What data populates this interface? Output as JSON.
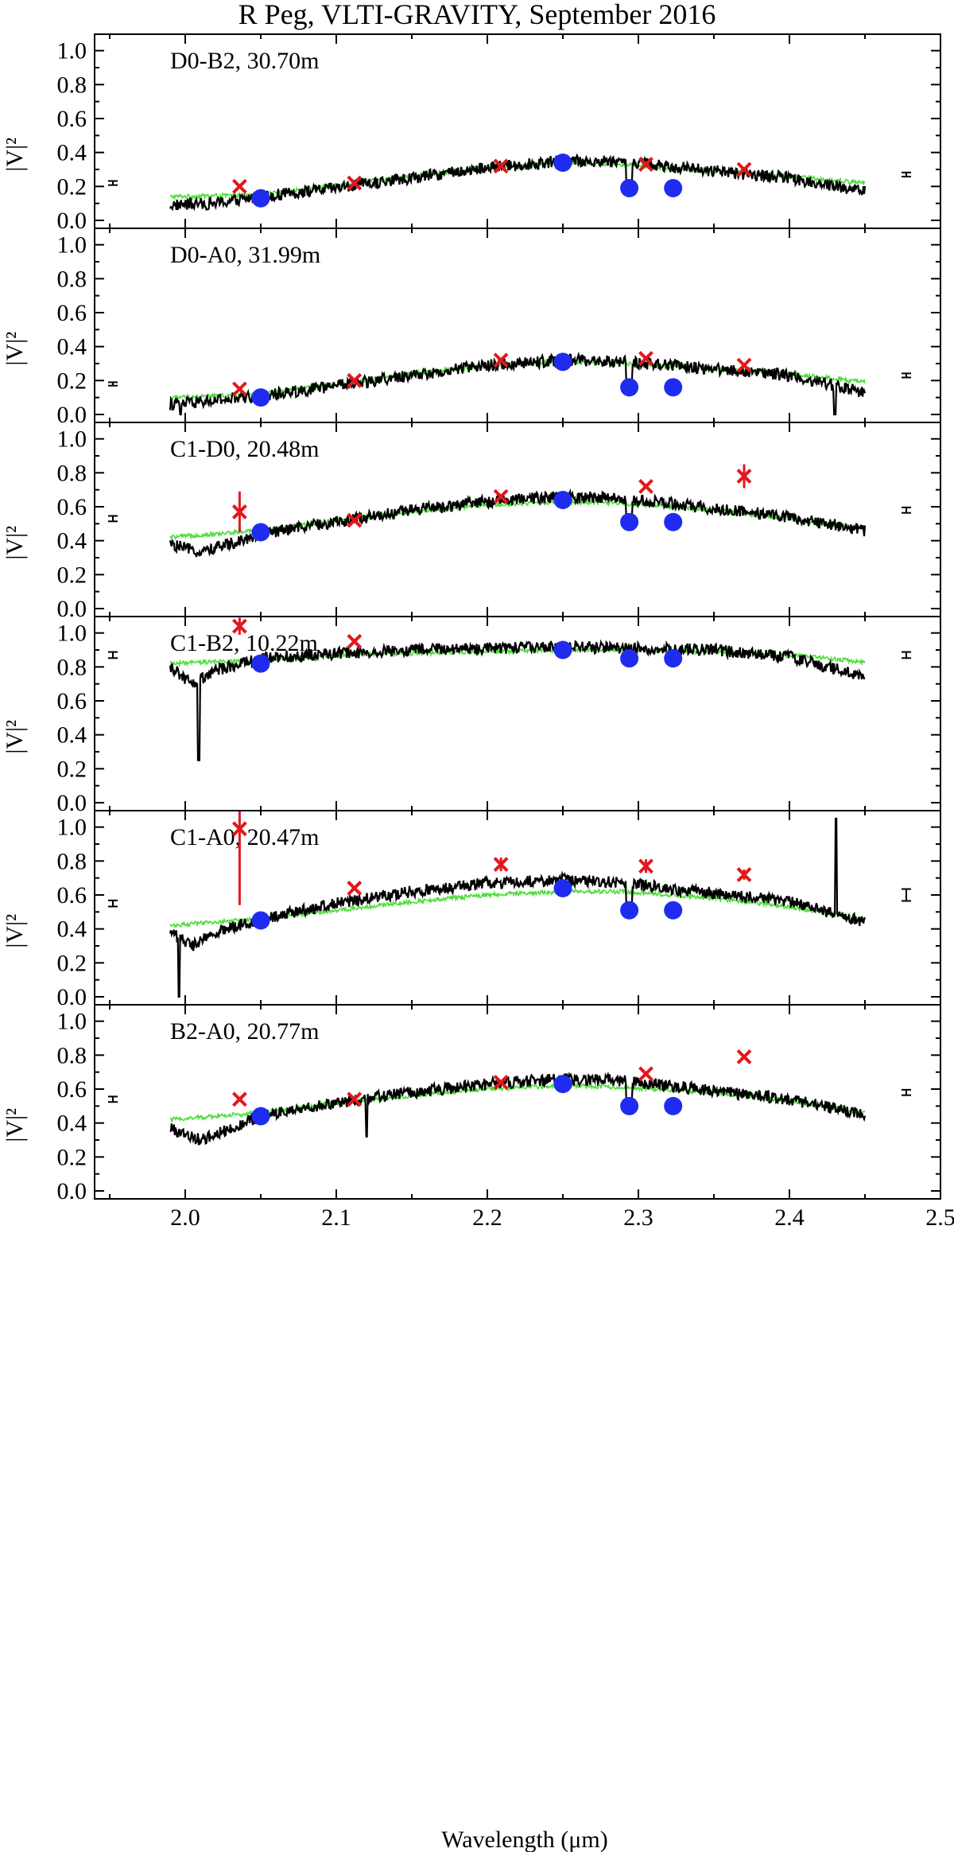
{
  "chart_data": {
    "type": "line",
    "title": "R Peg, VLTI-GRAVITY, September 2016",
    "xlabel": "Wavelength (μm)",
    "ylabel": "|V|²",
    "xlim": [
      1.94,
      2.5
    ],
    "ylim": [
      0.0,
      1.05
    ],
    "x_ticks": [
      "2.0",
      "2.1",
      "2.2",
      "2.3",
      "2.4",
      "2.5"
    ],
    "y_ticks": [
      "0.0",
      "0.2",
      "0.4",
      "0.6",
      "0.8",
      "1.0"
    ],
    "series_names": [
      "GRAVITY spectrum (black)",
      "model (green)",
      "model filter-averaged (red crosses)",
      "narrow-band averages (blue circles)"
    ],
    "colors": {
      "observed": "#000000",
      "model": "#4ddc3a",
      "crosses": "#e3171d",
      "dots": "#1f2cf0"
    },
    "panels": [
      {
        "label": "D0-B2, 30.70m",
        "baseline": "D0-B2",
        "length": "30.70m",
        "crosses": [
          {
            "x": 2.036,
            "y": 0.2
          },
          {
            "x": 2.112,
            "y": 0.22
          },
          {
            "x": 2.209,
            "y": 0.32
          },
          {
            "x": 2.305,
            "y": 0.33
          },
          {
            "x": 2.37,
            "y": 0.3
          }
        ],
        "dots": [
          {
            "x": 2.05,
            "y": 0.13
          },
          {
            "x": 2.25,
            "y": 0.34
          },
          {
            "x": 2.294,
            "y": 0.19
          },
          {
            "x": 2.323,
            "y": 0.19
          }
        ],
        "err_left": {
          "y": 0.22,
          "h": 0.012
        },
        "err_right": {
          "y": 0.27,
          "h": 0.012
        },
        "model_curve": [
          [
            1.99,
            0.14
          ],
          [
            2.05,
            0.15
          ],
          [
            2.1,
            0.21
          ],
          [
            2.15,
            0.26
          ],
          [
            2.2,
            0.31
          ],
          [
            2.25,
            0.34
          ],
          [
            2.29,
            0.33
          ],
          [
            2.35,
            0.29
          ],
          [
            2.4,
            0.26
          ],
          [
            2.45,
            0.22
          ]
        ],
        "obs_curve": [
          [
            1.99,
            0.09
          ],
          [
            2.02,
            0.1
          ],
          [
            2.05,
            0.14
          ],
          [
            2.1,
            0.19
          ],
          [
            2.15,
            0.25
          ],
          [
            2.2,
            0.31
          ],
          [
            2.25,
            0.35
          ],
          [
            2.29,
            0.35
          ],
          [
            2.35,
            0.29
          ],
          [
            2.4,
            0.25
          ],
          [
            2.45,
            0.17
          ]
        ],
        "dips": [
          {
            "x": 2.292,
            "y": 0.2
          }
        ],
        "spikes": []
      },
      {
        "label": "D0-A0, 31.99m",
        "baseline": "D0-A0",
        "length": "31.99m",
        "crosses": [
          {
            "x": 2.036,
            "y": 0.15
          },
          {
            "x": 2.112,
            "y": 0.2
          },
          {
            "x": 2.209,
            "y": 0.32
          },
          {
            "x": 2.305,
            "y": 0.33
          },
          {
            "x": 2.37,
            "y": 0.29
          }
        ],
        "dots": [
          {
            "x": 2.05,
            "y": 0.1
          },
          {
            "x": 2.25,
            "y": 0.31
          },
          {
            "x": 2.294,
            "y": 0.16
          },
          {
            "x": 2.323,
            "y": 0.16
          }
        ],
        "err_left": {
          "y": 0.18,
          "h": 0.01
        },
        "err_right": {
          "y": 0.23,
          "h": 0.012
        },
        "model_curve": [
          [
            1.99,
            0.1
          ],
          [
            2.05,
            0.12
          ],
          [
            2.1,
            0.18
          ],
          [
            2.15,
            0.24
          ],
          [
            2.2,
            0.29
          ],
          [
            2.25,
            0.31
          ],
          [
            2.29,
            0.3
          ],
          [
            2.35,
            0.27
          ],
          [
            2.4,
            0.24
          ],
          [
            2.45,
            0.19
          ]
        ],
        "obs_curve": [
          [
            1.99,
            0.06
          ],
          [
            2.02,
            0.08
          ],
          [
            2.05,
            0.11
          ],
          [
            2.1,
            0.17
          ],
          [
            2.15,
            0.23
          ],
          [
            2.2,
            0.29
          ],
          [
            2.25,
            0.32
          ],
          [
            2.29,
            0.31
          ],
          [
            2.35,
            0.27
          ],
          [
            2.4,
            0.23
          ],
          [
            2.45,
            0.13
          ]
        ],
        "dips": [
          {
            "x": 2.292,
            "y": 0.17
          }
        ],
        "spikes": [
          {
            "x": 1.997,
            "y": 0.0
          },
          {
            "x": 2.43,
            "y": 0.0
          }
        ]
      },
      {
        "label": "C1-D0, 20.48m",
        "baseline": "C1-D0",
        "length": "20.48m",
        "crosses": [
          {
            "x": 2.036,
            "y": 0.57,
            "err": 0.12
          },
          {
            "x": 2.112,
            "y": 0.52
          },
          {
            "x": 2.209,
            "y": 0.66
          },
          {
            "x": 2.305,
            "y": 0.72
          },
          {
            "x": 2.37,
            "y": 0.78,
            "err": 0.07
          }
        ],
        "dots": [
          {
            "x": 2.05,
            "y": 0.45
          },
          {
            "x": 2.25,
            "y": 0.64
          },
          {
            "x": 2.294,
            "y": 0.51
          },
          {
            "x": 2.323,
            "y": 0.51
          }
        ],
        "err_left": {
          "y": 0.53,
          "h": 0.016
        },
        "err_right": {
          "y": 0.58,
          "h": 0.016
        },
        "model_curve": [
          [
            1.99,
            0.42
          ],
          [
            2.05,
            0.46
          ],
          [
            2.1,
            0.52
          ],
          [
            2.15,
            0.57
          ],
          [
            2.2,
            0.61
          ],
          [
            2.25,
            0.63
          ],
          [
            2.29,
            0.62
          ],
          [
            2.35,
            0.58
          ],
          [
            2.4,
            0.53
          ],
          [
            2.45,
            0.47
          ]
        ],
        "obs_curve": [
          [
            1.99,
            0.38
          ],
          [
            2.01,
            0.33
          ],
          [
            2.05,
            0.44
          ],
          [
            2.1,
            0.51
          ],
          [
            2.15,
            0.58
          ],
          [
            2.2,
            0.63
          ],
          [
            2.25,
            0.66
          ],
          [
            2.29,
            0.65
          ],
          [
            2.35,
            0.59
          ],
          [
            2.4,
            0.54
          ],
          [
            2.45,
            0.46
          ]
        ],
        "dips": [
          {
            "x": 2.292,
            "y": 0.52
          }
        ],
        "spikes": []
      },
      {
        "label": "C1-B2, 10.22m",
        "baseline": "C1-B2",
        "length": "10.22m",
        "crosses": [
          {
            "x": 2.036,
            "y": 1.04,
            "err": 0.05
          },
          {
            "x": 2.112,
            "y": 0.95
          }
        ],
        "dots": [
          {
            "x": 2.05,
            "y": 0.82
          },
          {
            "x": 2.25,
            "y": 0.9
          },
          {
            "x": 2.294,
            "y": 0.85
          },
          {
            "x": 2.323,
            "y": 0.85
          }
        ],
        "err_left": {
          "y": 0.87,
          "h": 0.018
        },
        "err_right": {
          "y": 0.87,
          "h": 0.018
        },
        "model_curve": [
          [
            1.99,
            0.82
          ],
          [
            2.05,
            0.84
          ],
          [
            2.1,
            0.87
          ],
          [
            2.15,
            0.88
          ],
          [
            2.2,
            0.89
          ],
          [
            2.25,
            0.9
          ],
          [
            2.29,
            0.9
          ],
          [
            2.35,
            0.89
          ],
          [
            2.4,
            0.87
          ],
          [
            2.45,
            0.83
          ]
        ],
        "obs_curve": [
          [
            1.99,
            0.8
          ],
          [
            2.005,
            0.7
          ],
          [
            2.02,
            0.78
          ],
          [
            2.05,
            0.85
          ],
          [
            2.1,
            0.88
          ],
          [
            2.15,
            0.9
          ],
          [
            2.2,
            0.91
          ],
          [
            2.25,
            0.92
          ],
          [
            2.29,
            0.91
          ],
          [
            2.35,
            0.9
          ],
          [
            2.4,
            0.86
          ],
          [
            2.45,
            0.74
          ]
        ],
        "dips": [],
        "spikes": [
          {
            "x": 2.009,
            "y": 0.25
          }
        ]
      },
      {
        "label": "C1-A0, 20.47m",
        "baseline": "C1-A0",
        "length": "20.47m",
        "crosses": [
          {
            "x": 2.036,
            "y": 0.99,
            "err": 0.45
          },
          {
            "x": 2.112,
            "y": 0.64
          },
          {
            "x": 2.209,
            "y": 0.78,
            "err": 0.04
          },
          {
            "x": 2.305,
            "y": 0.77,
            "err": 0.04
          },
          {
            "x": 2.37,
            "y": 0.72,
            "err": 0.03
          }
        ],
        "dots": [
          {
            "x": 2.05,
            "y": 0.45
          },
          {
            "x": 2.25,
            "y": 0.64
          },
          {
            "x": 2.294,
            "y": 0.51
          },
          {
            "x": 2.323,
            "y": 0.51
          }
        ],
        "err_left": {
          "y": 0.55,
          "h": 0.018
        },
        "err_right": {
          "y": 0.6,
          "h": 0.035
        },
        "model_curve": [
          [
            1.99,
            0.42
          ],
          [
            2.05,
            0.46
          ],
          [
            2.1,
            0.51
          ],
          [
            2.15,
            0.56
          ],
          [
            2.2,
            0.6
          ],
          [
            2.25,
            0.62
          ],
          [
            2.29,
            0.62
          ],
          [
            2.35,
            0.58
          ],
          [
            2.4,
            0.53
          ],
          [
            2.45,
            0.46
          ]
        ],
        "obs_curve": [
          [
            1.99,
            0.38
          ],
          [
            2.005,
            0.3
          ],
          [
            2.02,
            0.38
          ],
          [
            2.05,
            0.46
          ],
          [
            2.1,
            0.55
          ],
          [
            2.15,
            0.62
          ],
          [
            2.2,
            0.67
          ],
          [
            2.25,
            0.69
          ],
          [
            2.29,
            0.67
          ],
          [
            2.35,
            0.61
          ],
          [
            2.4,
            0.56
          ],
          [
            2.45,
            0.44
          ]
        ],
        "dips": [
          {
            "x": 2.292,
            "y": 0.53
          }
        ],
        "spikes": [
          {
            "x": 1.996,
            "y": 0.0
          },
          {
            "x": 2.431,
            "y": 1.05
          }
        ]
      },
      {
        "label": "B2-A0, 20.77m",
        "baseline": "B2-A0",
        "length": "20.77m",
        "crosses": [
          {
            "x": 2.036,
            "y": 0.54
          },
          {
            "x": 2.112,
            "y": 0.54
          },
          {
            "x": 2.209,
            "y": 0.64
          },
          {
            "x": 2.305,
            "y": 0.69
          },
          {
            "x": 2.37,
            "y": 0.79
          }
        ],
        "dots": [
          {
            "x": 2.05,
            "y": 0.44
          },
          {
            "x": 2.25,
            "y": 0.63
          },
          {
            "x": 2.294,
            "y": 0.5
          },
          {
            "x": 2.323,
            "y": 0.5
          }
        ],
        "err_left": {
          "y": 0.54,
          "h": 0.016
        },
        "err_right": {
          "y": 0.58,
          "h": 0.016
        },
        "model_curve": [
          [
            1.99,
            0.42
          ],
          [
            2.05,
            0.46
          ],
          [
            2.1,
            0.52
          ],
          [
            2.15,
            0.56
          ],
          [
            2.2,
            0.6
          ],
          [
            2.25,
            0.62
          ],
          [
            2.29,
            0.61
          ],
          [
            2.35,
            0.58
          ],
          [
            2.4,
            0.53
          ],
          [
            2.45,
            0.46
          ]
        ],
        "obs_curve": [
          [
            1.99,
            0.37
          ],
          [
            2.01,
            0.3
          ],
          [
            2.05,
            0.44
          ],
          [
            2.1,
            0.52
          ],
          [
            2.15,
            0.58
          ],
          [
            2.2,
            0.63
          ],
          [
            2.25,
            0.66
          ],
          [
            2.29,
            0.65
          ],
          [
            2.35,
            0.59
          ],
          [
            2.4,
            0.54
          ],
          [
            2.45,
            0.45
          ]
        ],
        "dips": [
          {
            "x": 2.292,
            "y": 0.52
          }
        ],
        "spikes": [
          {
            "x": 2.12,
            "y": 0.32
          }
        ]
      }
    ]
  }
}
